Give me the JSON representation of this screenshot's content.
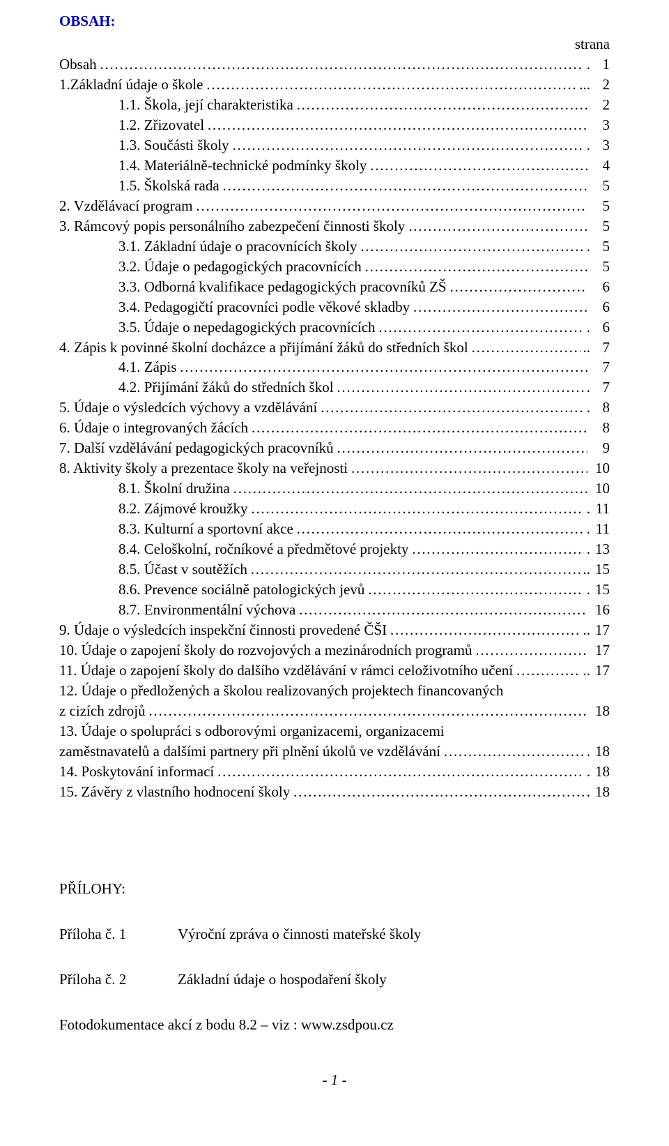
{
  "heading": "OBSAH:",
  "strana": "strana",
  "toc": [
    {
      "indent": 0,
      "label": "Obsah",
      "leader": "ddots",
      "tail": ".",
      "page": "1"
    },
    {
      "indent": 0,
      "label": "1.Základní  údaje o škole",
      "leader": "ddots",
      "tail": "...",
      "page": "2"
    },
    {
      "indent": 1,
      "label": "1.1. Škola, její charakteristika",
      "leader": "ddots",
      "tail": "",
      "page": "2"
    },
    {
      "indent": 1,
      "label": "1.2. Zřizovatel",
      "leader": "ddots",
      "tail": "",
      "page": "3"
    },
    {
      "indent": 1,
      "label": "1.3. Součásti školy",
      "leader": "ddots",
      "tail": ".",
      "page": "3"
    },
    {
      "indent": 1,
      "label": "1.4. Materiálně-technické podmínky školy",
      "leader": "ddots",
      "tail": "",
      "page": "4"
    },
    {
      "indent": 1,
      "label": "1.5. Školská rada",
      "leader": "ddots",
      "tail": "",
      "page": "5"
    },
    {
      "indent": 0,
      "label": "2.   Vzdělávací program",
      "leader": "ddots",
      "tail": "",
      "page": "5"
    },
    {
      "indent": 0,
      "label": "3.   Rámcový popis personálního zabezpečení činnosti školy",
      "leader": "ddots",
      "tail": "",
      "page": "5"
    },
    {
      "indent": 1,
      "label": "3.1. Základní údaje o pracovnících školy",
      "leader": "ddots",
      "tail": ".",
      "page": "5"
    },
    {
      "indent": 1,
      "label": "3.2. Údaje o pedagogických pracovnících",
      "leader": "ddots",
      "tail": "",
      "page": "5"
    },
    {
      "indent": 1,
      "label": "3.3. Odborná kvalifikace pedagogických pracovníků ZŠ",
      "leader": "ddots",
      "tail": "",
      "page": "6"
    },
    {
      "indent": 1,
      "label": "3.4. Pedagogičtí pracovníci podle věkové skladby",
      "leader": "ddots",
      "tail": "",
      "page": "6"
    },
    {
      "indent": 1,
      "label": "3.5. Údaje o nepedagogických pracovnících",
      "leader": "ddots",
      "tail": ".",
      "page": "6"
    },
    {
      "indent": 0,
      "label": "4.   Zápis k povinné školní docházce a přijímání žáků do středních škol",
      "leader": "ddots",
      "tail": "..",
      "page": "7"
    },
    {
      "indent": 1,
      "label": "4.1. Zápis",
      "leader": "ddots",
      "tail": "",
      "page": "7"
    },
    {
      "indent": 1,
      "label": "4.2. Přijímání žáků do středních škol",
      "leader": "ddots",
      "tail": ".",
      "page": "7"
    },
    {
      "indent": 0,
      "label": "5.   Údaje o výsledcích výchovy a vzdělávání",
      "leader": "ddots",
      "tail": ".",
      "page": "8"
    },
    {
      "indent": 0,
      "label": "6.   Údaje o integrovaných žácích",
      "leader": "ddots",
      "tail": "",
      "page": "8"
    },
    {
      "indent": 0,
      "label": "7.   Další vzdělávání pedagogických pracovníků",
      "leader": "ddots",
      "tail": "",
      "page": "9"
    },
    {
      "indent": 0,
      "label": "8.   Aktivity školy a prezentace školy na veřejnosti",
      "leader": "ddots",
      "tail": "",
      "page": "10"
    },
    {
      "indent": 1,
      "label": "8.1. Školní družina",
      "leader": "ddots",
      "tail": "",
      "page": "10"
    },
    {
      "indent": 1,
      "label": "8.2. Zájmové kroužky",
      "leader": "ddots",
      "tail": ".",
      "page": "11"
    },
    {
      "indent": 1,
      "label": "8.3. Kulturní a sportovní akce",
      "leader": "ddots",
      "tail": ".",
      "page": "11"
    },
    {
      "indent": 1,
      "label": "8.4. Celoškolní, ročníkové a předmětové projekty",
      "leader": "ddots",
      "tail": ".",
      "page": "13"
    },
    {
      "indent": 1,
      "label": "8.5. Účast v soutěžích ",
      "leader": "ddots",
      "tail": "..",
      "page": "15"
    },
    {
      "indent": 1,
      "label": "8.6. Prevence sociálně patologických jevů",
      "leader": "ddots",
      "tail": ".",
      "page": "15"
    },
    {
      "indent": 1,
      "label": "8.7. Environmentální výchova",
      "leader": "ddots",
      "tail": "",
      "page": "16"
    },
    {
      "indent": 0,
      "label": "9.   Údaje o výsledcích inspekční činnosti provedené ČŠI",
      "leader": "ddots",
      "tail": "..",
      "page": "17"
    },
    {
      "indent": 0,
      "label": "10. Údaje o zapojení školy do rozvojových a mezinárodních programů",
      "leader": "ddots",
      "tail": "",
      "page": "17"
    },
    {
      "indent": 0,
      "label": "11. Údaje o zapojení školy do dalšího vzdělávání v rámci celoživotního učení",
      "leader": "ddots",
      "tail": "..",
      "page": "17"
    },
    {
      "indent": 0,
      "label": "12. Údaje o předložených a školou realizovaných projektech financovaných",
      "leader": "none",
      "tail": "",
      "page": ""
    },
    {
      "indent": 0,
      "label": "      z cizích zdrojů",
      "leader": "ddots",
      "tail": "",
      "page": "18"
    },
    {
      "indent": 0,
      "label": "13. Údaje o spolupráci s odborovými organizacemi, organizacemi",
      "leader": "none",
      "tail": "",
      "page": ""
    },
    {
      "indent": 0,
      "label": "      zaměstnavatelů a dalšími partnery při plnění úkolů ve vzdělávání",
      "leader": "ddots",
      "tail": ".",
      "page": "18"
    },
    {
      "indent": 0,
      "label": "14. Poskytování informací",
      "leader": "ddots",
      "tail": ".",
      "page": "18"
    },
    {
      "indent": 0,
      "label": "15. Závěry z vlastního hodnocení školy",
      "leader": "ddots",
      "tail": ".",
      "page": "18"
    }
  ],
  "appendix_heading": "PŘÍLOHY:",
  "appendix": [
    {
      "left": "Příloha č. 1",
      "right": "Výroční zpráva o činnosti mateřské školy"
    },
    {
      "left": "Příloha č. 2",
      "right": "Základní údaje o hospodaření školy"
    }
  ],
  "foto": "Fotodokumentace akcí z bodu 8.2 – viz : www.zsdpou.cz",
  "footer": "- 1 -",
  "colors": {
    "heading": "#0000c0",
    "text": "#000000",
    "background": "#ffffff"
  },
  "font": {
    "family": "Times New Roman",
    "size_pt": 16
  }
}
